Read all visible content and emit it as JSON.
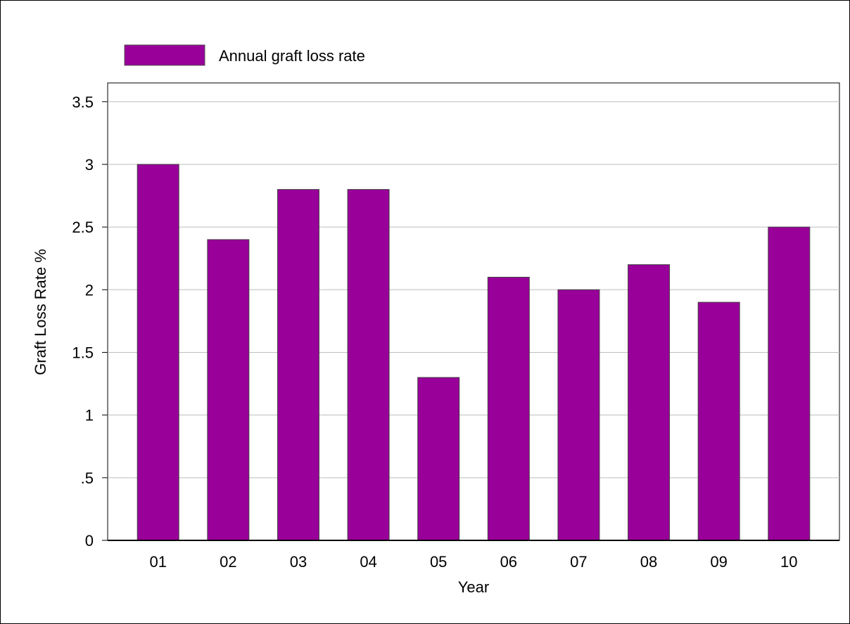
{
  "chart_data": {
    "type": "bar",
    "categories": [
      "01",
      "02",
      "03",
      "04",
      "05",
      "06",
      "07",
      "08",
      "09",
      "10"
    ],
    "series": [
      {
        "name": "Annual graft loss rate",
        "values": [
          3.0,
          2.4,
          2.8,
          2.8,
          1.3,
          2.1,
          2.0,
          2.2,
          1.9,
          2.5
        ],
        "color": "#990099"
      }
    ],
    "xlabel": "Year",
    "ylabel": "Graft Loss Rate %",
    "ylim": [
      0,
      3.65
    ],
    "yticks": [
      0,
      0.5,
      1,
      1.5,
      2,
      2.5,
      3,
      3.5
    ],
    "ytick_labels": [
      "0",
      ".5",
      "1",
      "1.5",
      "2",
      "2.5",
      "3",
      "3.5"
    ],
    "grid": true,
    "legend_position": "top-left"
  }
}
